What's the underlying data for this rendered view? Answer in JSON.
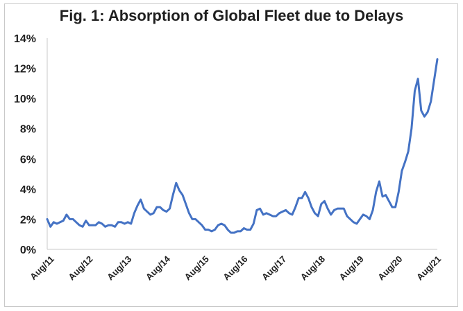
{
  "chart_data": {
    "type": "line",
    "title": "Fig. 1: Absorption of Global Fleet due to Delays",
    "xlabel": "",
    "ylabel": "",
    "ylim": [
      0,
      14
    ],
    "y_ticks": [
      0,
      2,
      4,
      6,
      8,
      10,
      12,
      14
    ],
    "y_tick_labels": [
      "0%",
      "2%",
      "4%",
      "6%",
      "8%",
      "10%",
      "12%",
      "14%"
    ],
    "x_tick_labels": [
      "Aug/11",
      "Aug/12",
      "Aug/13",
      "Aug/14",
      "Aug/15",
      "Aug/16",
      "Aug/17",
      "Aug/18",
      "Aug/19",
      "Aug/20",
      "Aug/21"
    ],
    "grid": false,
    "legend": "none",
    "line_color": "#4472c4",
    "series": [
      {
        "name": "Absorption of Global Fleet",
        "x_start": "Aug/11",
        "x_step": "month",
        "values": [
          2.0,
          1.5,
          1.8,
          1.7,
          1.8,
          1.9,
          2.3,
          2.0,
          2.0,
          1.8,
          1.6,
          1.5,
          1.9,
          1.6,
          1.6,
          1.6,
          1.8,
          1.7,
          1.5,
          1.6,
          1.6,
          1.5,
          1.8,
          1.8,
          1.7,
          1.8,
          1.7,
          2.4,
          2.9,
          3.3,
          2.7,
          2.5,
          2.3,
          2.4,
          2.8,
          2.8,
          2.6,
          2.5,
          2.7,
          3.6,
          4.4,
          3.9,
          3.6,
          3.0,
          2.4,
          2.0,
          2.0,
          1.8,
          1.6,
          1.3,
          1.3,
          1.2,
          1.3,
          1.6,
          1.7,
          1.6,
          1.3,
          1.1,
          1.1,
          1.2,
          1.2,
          1.4,
          1.3,
          1.3,
          1.7,
          2.6,
          2.7,
          2.3,
          2.4,
          2.3,
          2.2,
          2.2,
          2.4,
          2.5,
          2.6,
          2.4,
          2.3,
          2.8,
          3.4,
          3.4,
          3.8,
          3.4,
          2.8,
          2.4,
          2.2,
          3.0,
          3.2,
          2.7,
          2.3,
          2.6,
          2.7,
          2.7,
          2.7,
          2.2,
          2.0,
          1.8,
          1.7,
          2.0,
          2.3,
          2.2,
          2.0,
          2.6,
          3.8,
          4.5,
          3.5,
          3.6,
          3.2,
          2.8,
          2.8,
          3.8,
          5.2,
          5.8,
          6.5,
          8.0,
          10.5,
          11.3,
          9.2,
          8.8,
          9.1,
          9.8,
          11.2,
          12.6
        ]
      }
    ]
  }
}
